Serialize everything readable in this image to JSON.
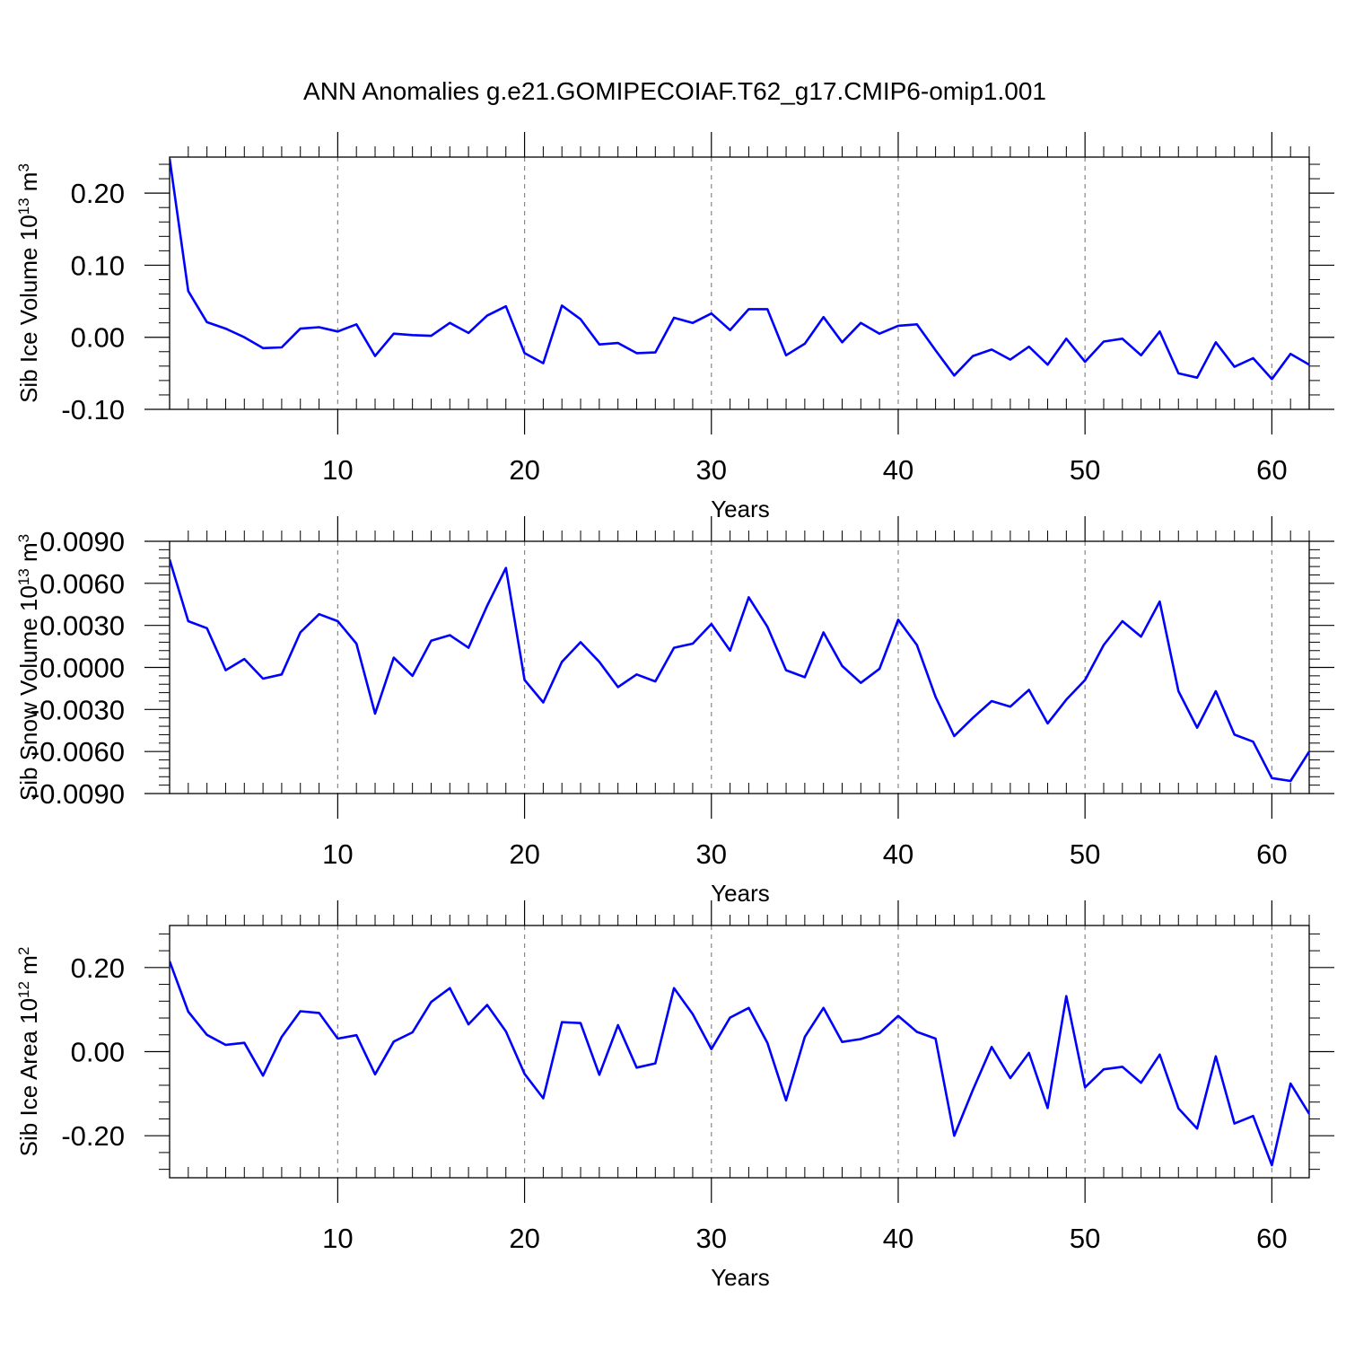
{
  "chart_data": [
    {
      "type": "line",
      "title": "ANN Anomalies g.e21.GOMIPECOIAF.T62_g17.CMIP6-omip1.001",
      "xlabel": "Years",
      "ylabel": {
        "base": "Sib Ice Volume 10",
        "exp": "13",
        "unit": " m",
        "unit_exp": "3"
      },
      "xlim": [
        1,
        62
      ],
      "ylim": [
        -0.1,
        0.25
      ],
      "xticks": [
        10,
        20,
        30,
        40,
        50,
        60
      ],
      "xtick_labels": [
        "10",
        "20",
        "30",
        "40",
        "50",
        "60"
      ],
      "yticks": [
        -0.1,
        0.0,
        0.1,
        0.2
      ],
      "ytick_labels": [
        "-0.10",
        "0.00",
        "0.10",
        "0.20"
      ],
      "line_color": "#0000ff",
      "x": [
        1,
        2,
        3,
        4,
        5,
        6,
        7,
        8,
        9,
        10,
        11,
        12,
        13,
        14,
        15,
        16,
        17,
        18,
        19,
        20,
        21,
        22,
        23,
        24,
        25,
        26,
        27,
        28,
        29,
        30,
        31,
        32,
        33,
        34,
        35,
        36,
        37,
        38,
        39,
        40,
        41,
        42,
        43,
        44,
        45,
        46,
        47,
        48,
        49,
        50,
        51,
        52,
        53,
        54,
        55,
        56,
        57,
        58,
        59,
        60,
        61,
        62
      ],
      "values": [
        0.248,
        0.064,
        0.021,
        0.012,
        0.0,
        -0.015,
        -0.014,
        0.012,
        0.014,
        0.008,
        0.018,
        -0.026,
        0.005,
        0.003,
        0.002,
        0.02,
        0.006,
        0.03,
        0.043,
        -0.022,
        -0.036,
        0.044,
        0.025,
        -0.01,
        -0.008,
        -0.022,
        -0.021,
        0.027,
        0.02,
        0.033,
        0.01,
        0.039,
        0.039,
        -0.025,
        -0.009,
        0.028,
        -0.007,
        0.02,
        0.005,
        0.016,
        0.018,
        -0.018,
        -0.053,
        -0.026,
        -0.017,
        -0.031,
        -0.013,
        -0.038,
        -0.002,
        -0.034,
        -0.006,
        -0.002,
        -0.025,
        0.008,
        -0.05,
        -0.056,
        -0.007,
        -0.041,
        -0.029,
        -0.058,
        -0.023,
        -0.038
      ]
    },
    {
      "type": "line",
      "xlabel": "Years",
      "ylabel": {
        "base": "Sib Snow Volume 10",
        "exp": "13",
        "unit": " m",
        "unit_exp": "3"
      },
      "xlim": [
        1,
        62
      ],
      "ylim": [
        -0.009,
        0.009
      ],
      "xticks": [
        10,
        20,
        30,
        40,
        50,
        60
      ],
      "xtick_labels": [
        "10",
        "20",
        "30",
        "40",
        "50",
        "60"
      ],
      "yticks": [
        -0.009,
        -0.006,
        -0.003,
        0.0,
        0.003,
        0.006,
        0.009
      ],
      "ytick_labels": [
        "-0.0090",
        "-0.0060",
        "-0.0030",
        "0.0000",
        "0.0030",
        "0.0060",
        "0.0090"
      ],
      "line_color": "#0000ff",
      "x": [
        1,
        2,
        3,
        4,
        5,
        6,
        7,
        8,
        9,
        10,
        11,
        12,
        13,
        14,
        15,
        16,
        17,
        18,
        19,
        20,
        21,
        22,
        23,
        24,
        25,
        26,
        27,
        28,
        29,
        30,
        31,
        32,
        33,
        34,
        35,
        36,
        37,
        38,
        39,
        40,
        41,
        42,
        43,
        44,
        45,
        46,
        47,
        48,
        49,
        50,
        51,
        52,
        53,
        54,
        55,
        56,
        57,
        58,
        59,
        60,
        61,
        62
      ],
      "values": [
        0.0077,
        0.0033,
        0.0028,
        -0.0002,
        0.0006,
        -0.0008,
        -0.0005,
        0.0025,
        0.0038,
        0.0033,
        0.0017,
        -0.0033,
        0.0007,
        -0.0006,
        0.0019,
        0.0023,
        0.0014,
        0.0044,
        0.0071,
        -0.0009,
        -0.0025,
        0.0004,
        0.0018,
        0.0004,
        -0.0014,
        -0.0005,
        -0.001,
        0.0014,
        0.0017,
        0.0031,
        0.0012,
        0.005,
        0.0029,
        -0.0002,
        -0.0007,
        0.0025,
        0.0001,
        -0.0011,
        -0.0001,
        0.0034,
        0.0016,
        -0.0021,
        -0.0049,
        -0.0036,
        -0.0024,
        -0.0028,
        -0.0016,
        -0.004,
        -0.0023,
        -0.0009,
        0.0016,
        0.0033,
        0.0022,
        0.0047,
        -0.0017,
        -0.0043,
        -0.0017,
        -0.0048,
        -0.0053,
        -0.0079,
        -0.0081,
        -0.006
      ]
    },
    {
      "type": "line",
      "xlabel": "Years",
      "ylabel": {
        "base": "Sib Ice Area 10",
        "exp": "12",
        "unit": " m",
        "unit_exp": "2"
      },
      "xlim": [
        1,
        62
      ],
      "ylim": [
        -0.3,
        0.3
      ],
      "xticks": [
        10,
        20,
        30,
        40,
        50,
        60
      ],
      "xtick_labels": [
        "10",
        "20",
        "30",
        "40",
        "50",
        "60"
      ],
      "yticks": [
        -0.2,
        0.0,
        0.2
      ],
      "ytick_labels": [
        "-0.20",
        "0.00",
        "0.20"
      ],
      "line_color": "#0000ff",
      "x": [
        1,
        2,
        3,
        4,
        5,
        6,
        7,
        8,
        9,
        10,
        11,
        12,
        13,
        14,
        15,
        16,
        17,
        18,
        19,
        20,
        21,
        22,
        23,
        24,
        25,
        26,
        27,
        28,
        29,
        30,
        31,
        32,
        33,
        34,
        35,
        36,
        37,
        38,
        39,
        40,
        41,
        42,
        43,
        44,
        45,
        46,
        47,
        48,
        49,
        50,
        51,
        52,
        53,
        54,
        55,
        56,
        57,
        58,
        59,
        60,
        61,
        62
      ],
      "values": [
        0.215,
        0.095,
        0.04,
        0.016,
        0.021,
        -0.057,
        0.035,
        0.096,
        0.092,
        0.031,
        0.039,
        -0.054,
        0.024,
        0.046,
        0.118,
        0.151,
        0.065,
        0.111,
        0.048,
        -0.053,
        -0.111,
        0.07,
        0.068,
        -0.055,
        0.063,
        -0.038,
        -0.028,
        0.151,
        0.089,
        0.006,
        0.081,
        0.104,
        0.021,
        -0.116,
        0.035,
        0.104,
        0.023,
        0.03,
        0.044,
        0.085,
        0.047,
        0.031,
        -0.2,
        -0.091,
        0.011,
        -0.063,
        -0.003,
        -0.134,
        0.132,
        -0.085,
        -0.042,
        -0.036,
        -0.074,
        -0.007,
        -0.135,
        -0.183,
        -0.011,
        -0.171,
        -0.153,
        -0.27,
        -0.076,
        -0.148
      ]
    }
  ]
}
